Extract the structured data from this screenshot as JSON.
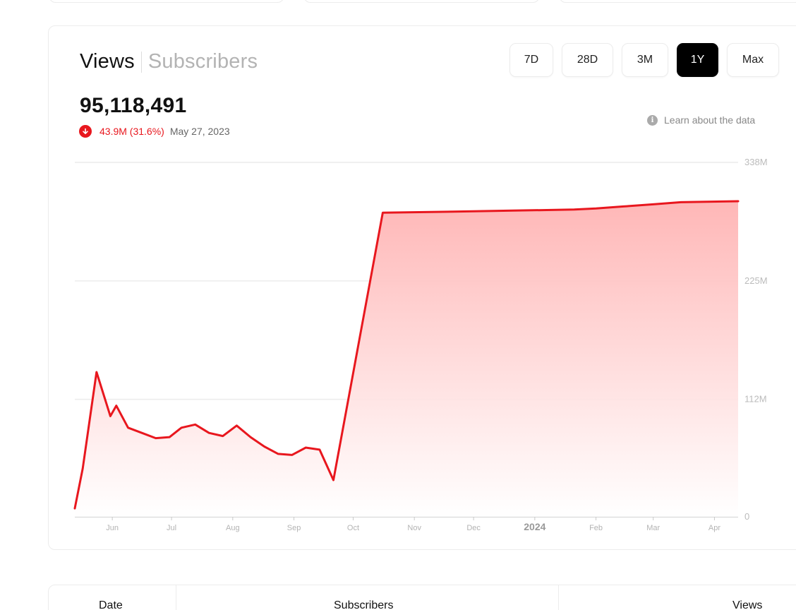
{
  "metric_tabs": [
    {
      "label": "Views",
      "active": true
    },
    {
      "label": "Subscribers",
      "active": false
    }
  ],
  "range_buttons": [
    {
      "label": "7D",
      "active": false
    },
    {
      "label": "28D",
      "active": false
    },
    {
      "label": "3M",
      "active": false
    },
    {
      "label": "1Y",
      "active": true
    },
    {
      "label": "Max",
      "active": false
    }
  ],
  "summary": {
    "value": "95,118,491",
    "change": "43.9M (31.6%)",
    "date": "May 27, 2023",
    "trend": "down"
  },
  "learn_link": "Learn about the data",
  "table": {
    "headers": [
      "Date",
      "Subscribers",
      "Views"
    ]
  },
  "colors": {
    "accent": "#e8171e",
    "area_top": "#ffb3b3",
    "area_bottom": "#ffffff"
  },
  "chart_data": {
    "type": "area",
    "title": "",
    "xlabel": "",
    "ylabel": "",
    "ylim": [
      0,
      338
    ],
    "y_unit": "M",
    "y_ticks": [
      {
        "value": 0,
        "label": "0"
      },
      {
        "value": 112,
        "label": "112M"
      },
      {
        "value": 225,
        "label": "225M"
      },
      {
        "value": 338,
        "label": "338M"
      }
    ],
    "x_ticks": [
      {
        "date": "2023-06-01",
        "label": "Jun",
        "bold": false
      },
      {
        "date": "2023-07-01",
        "label": "Jul",
        "bold": false
      },
      {
        "date": "2023-08-01",
        "label": "Aug",
        "bold": false
      },
      {
        "date": "2023-09-01",
        "label": "Sep",
        "bold": false
      },
      {
        "date": "2023-10-01",
        "label": "Oct",
        "bold": false
      },
      {
        "date": "2023-11-01",
        "label": "Nov",
        "bold": false
      },
      {
        "date": "2023-12-01",
        "label": "Dec",
        "bold": false
      },
      {
        "date": "2024-01-01",
        "label": "2024",
        "bold": true
      },
      {
        "date": "2024-02-01",
        "label": "Feb",
        "bold": false
      },
      {
        "date": "2024-03-01",
        "label": "Mar",
        "bold": false
      },
      {
        "date": "2024-04-01",
        "label": "Apr",
        "bold": false
      }
    ],
    "x_range": [
      "2023-05-13",
      "2024-04-13"
    ],
    "grid": true,
    "legend": "none",
    "series": [
      {
        "x": [
          "2023-05-13",
          "2023-05-17",
          "2023-05-24",
          "2023-05-31",
          "2023-06-03",
          "2023-06-09",
          "2023-06-16",
          "2023-06-23",
          "2023-06-30",
          "2023-07-06",
          "2023-07-13",
          "2023-07-20",
          "2023-07-27",
          "2023-08-03",
          "2023-08-10",
          "2023-08-17",
          "2023-08-24",
          "2023-08-31",
          "2023-09-07",
          "2023-09-14",
          "2023-09-21",
          "2023-10-16",
          "2023-11-21",
          "2023-12-21",
          "2024-01-21",
          "2024-02-01",
          "2024-02-15",
          "2024-03-01",
          "2024-03-15",
          "2024-04-13"
        ],
        "values": [
          8,
          46,
          138,
          96,
          106,
          85,
          80,
          75,
          76,
          85,
          88,
          80,
          77,
          87,
          76,
          67,
          60,
          59,
          66,
          64,
          35,
          290,
          291,
          292,
          293,
          294,
          296,
          298,
          300,
          301
        ]
      }
    ]
  }
}
